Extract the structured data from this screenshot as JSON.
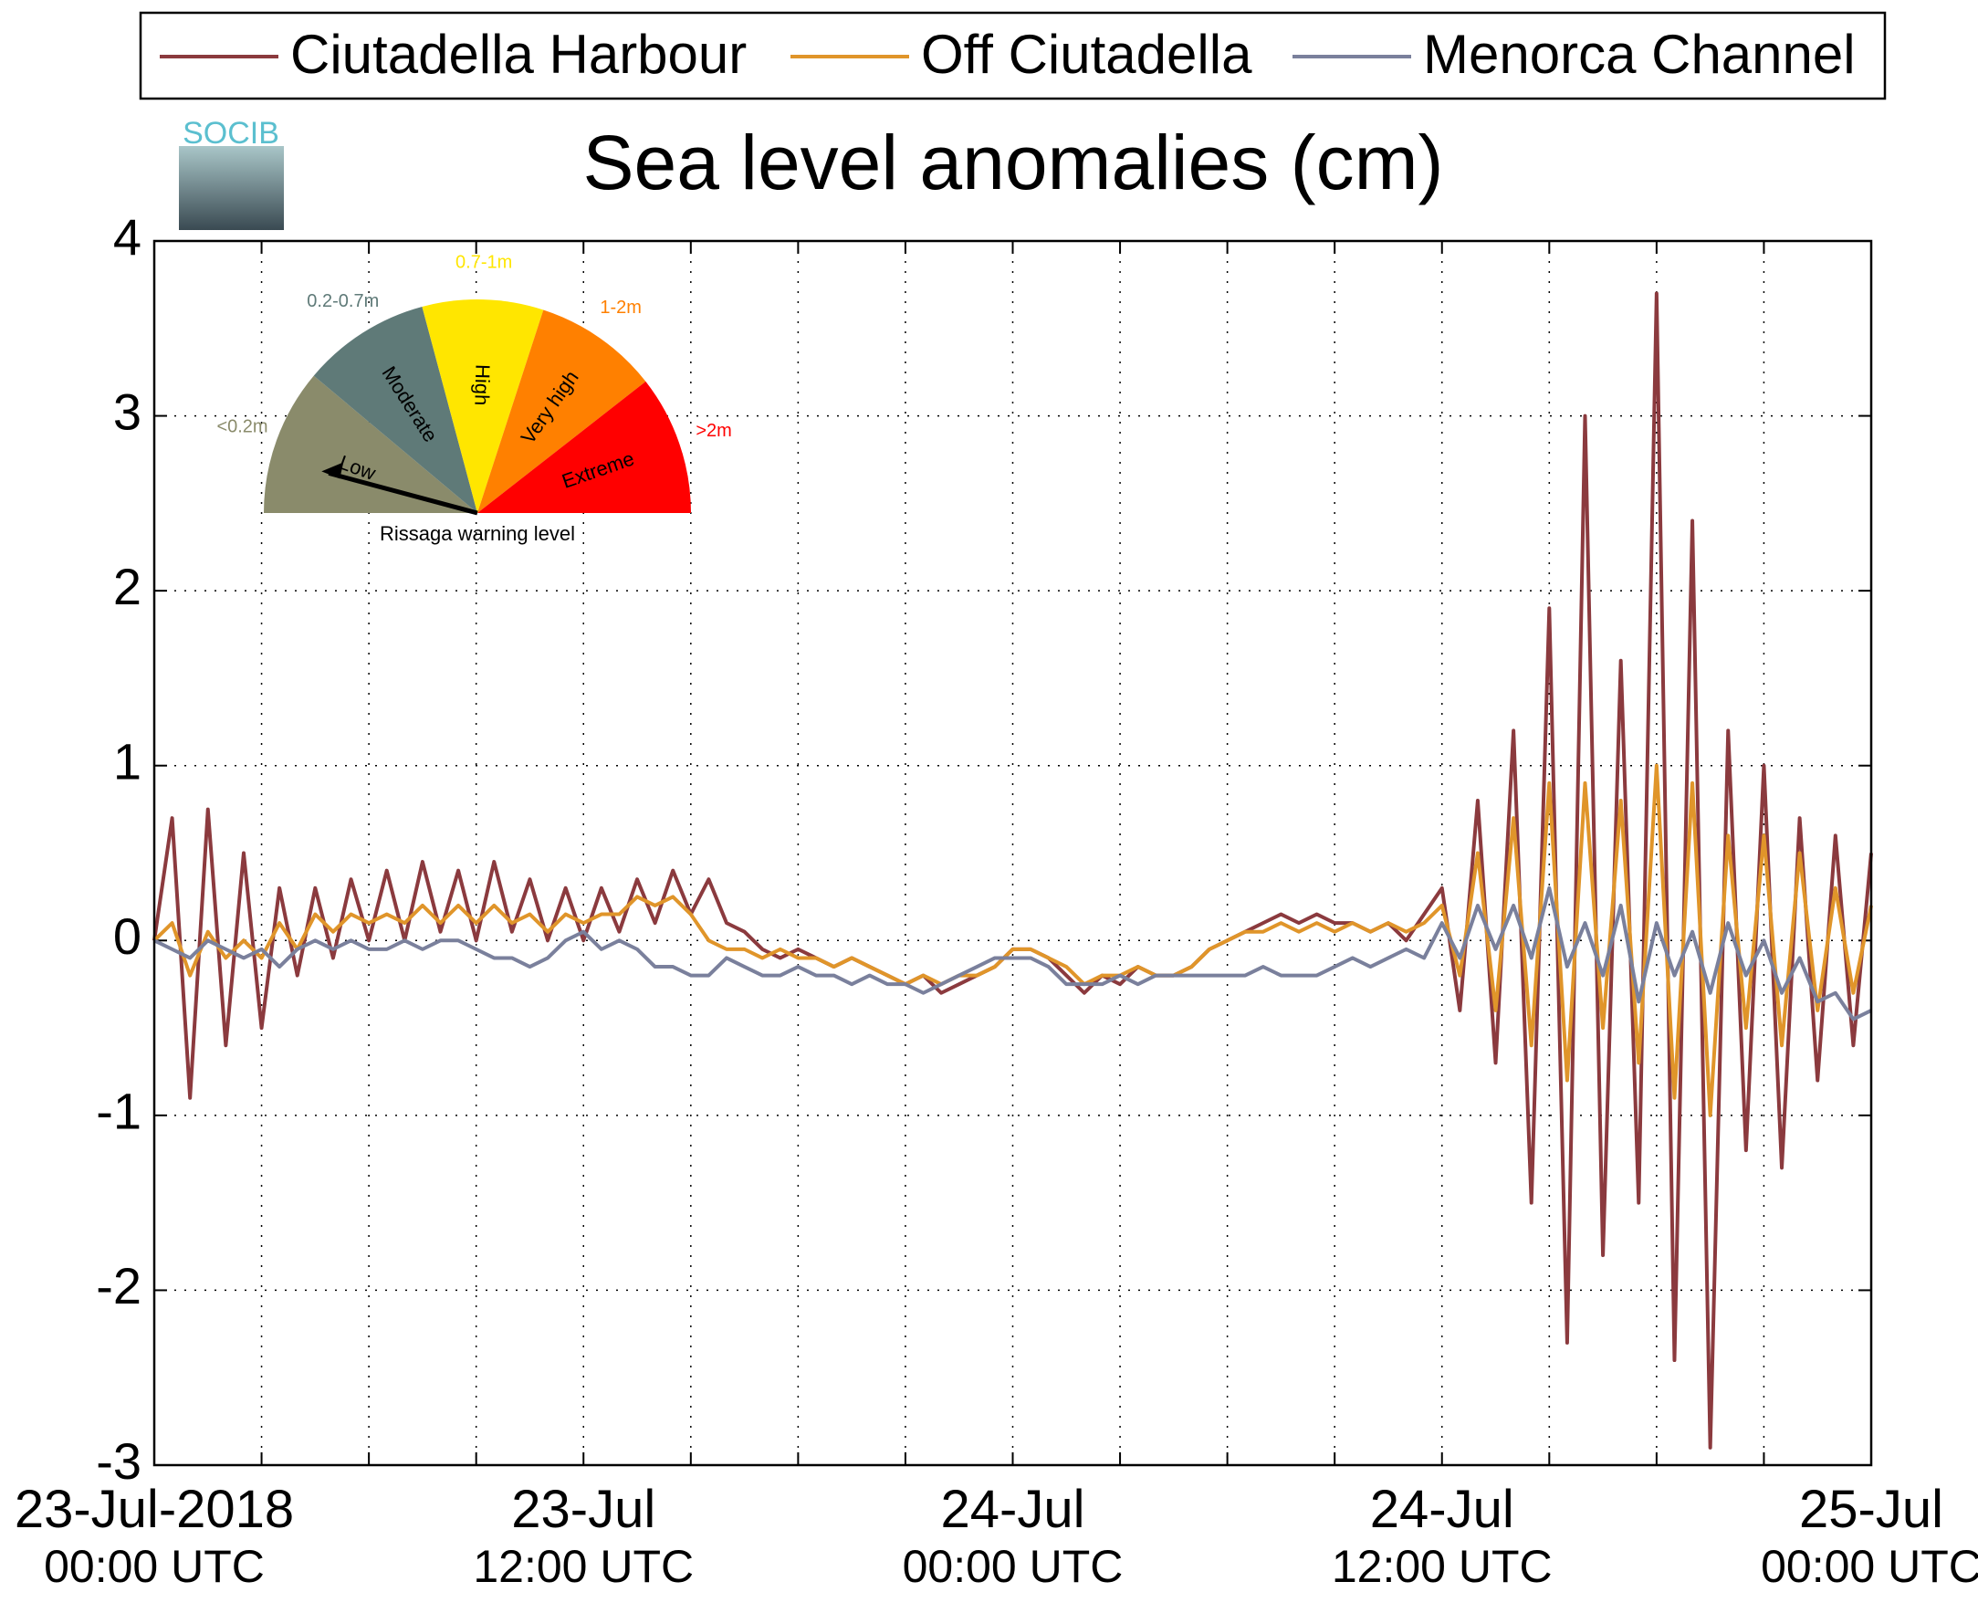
{
  "chart_data": {
    "type": "line",
    "title": "Sea level anomalies (cm)",
    "x": [
      0,
      0.5,
      1,
      1.5,
      2,
      2.5,
      3,
      3.5,
      4,
      4.5,
      5,
      5.5,
      6,
      6.5,
      7,
      7.5,
      8,
      8.5,
      9,
      9.5,
      10,
      10.5,
      11,
      11.5,
      12,
      12.5,
      13,
      13.5,
      14,
      14.5,
      15,
      15.5,
      16,
      16.5,
      17,
      17.5,
      18,
      18.5,
      19,
      19.5,
      20,
      20.5,
      21,
      21.5,
      22,
      22.5,
      23,
      23.5,
      24,
      24.5,
      25,
      25.5,
      26,
      26.5,
      27,
      27.5,
      28,
      28.5,
      29,
      29.5,
      30,
      30.5,
      31,
      31.5,
      32,
      32.5,
      33,
      33.5,
      34,
      34.5,
      35,
      35.5,
      36,
      36.5,
      37,
      37.5,
      38,
      38.5,
      39,
      39.5,
      40,
      40.5,
      41,
      41.5,
      42,
      42.5,
      43,
      43.5,
      44,
      44.5,
      45,
      45.5,
      46,
      46.5,
      47,
      47.5,
      48
    ],
    "series": [
      {
        "name": "Ciutadella Harbour",
        "color": "#8b3a3e",
        "values": [
          0,
          0.7,
          -0.9,
          0.75,
          -0.6,
          0.5,
          -0.5,
          0.3,
          -0.2,
          0.3,
          -0.1,
          0.35,
          0.0,
          0.4,
          0.0,
          0.45,
          0.05,
          0.4,
          0.0,
          0.45,
          0.05,
          0.35,
          0.0,
          0.3,
          0.0,
          0.3,
          0.05,
          0.35,
          0.1,
          0.4,
          0.15,
          0.35,
          0.1,
          0.05,
          -0.05,
          -0.1,
          -0.05,
          -0.1,
          -0.15,
          -0.1,
          -0.15,
          -0.2,
          -0.25,
          -0.2,
          -0.3,
          -0.25,
          -0.2,
          -0.15,
          -0.05,
          -0.05,
          -0.1,
          -0.2,
          -0.3,
          -0.2,
          -0.25,
          -0.15,
          -0.2,
          -0.2,
          -0.15,
          -0.05,
          0.0,
          0.05,
          0.1,
          0.15,
          0.1,
          0.15,
          0.1,
          0.1,
          0.05,
          0.1,
          0.0,
          0.15,
          0.3,
          -0.4,
          0.8,
          -0.7,
          1.2,
          -1.5,
          1.9,
          -2.3,
          3.0,
          -1.8,
          1.6,
          -1.5,
          3.7,
          -2.4,
          2.4,
          -2.9,
          1.2,
          -1.2,
          1.0,
          -1.3,
          0.7,
          -0.8,
          0.6,
          -0.6,
          0.5
        ]
      },
      {
        "name": "Off Ciutadella",
        "color": "#e0952a",
        "values": [
          0,
          0.1,
          -0.2,
          0.05,
          -0.1,
          0.0,
          -0.1,
          0.1,
          -0.05,
          0.15,
          0.05,
          0.15,
          0.1,
          0.15,
          0.1,
          0.2,
          0.1,
          0.2,
          0.1,
          0.2,
          0.1,
          0.15,
          0.05,
          0.15,
          0.1,
          0.15,
          0.15,
          0.25,
          0.2,
          0.25,
          0.15,
          0.0,
          -0.05,
          -0.05,
          -0.1,
          -0.05,
          -0.1,
          -0.1,
          -0.15,
          -0.1,
          -0.15,
          -0.2,
          -0.25,
          -0.2,
          -0.25,
          -0.2,
          -0.2,
          -0.15,
          -0.05,
          -0.05,
          -0.1,
          -0.15,
          -0.25,
          -0.2,
          -0.2,
          -0.15,
          -0.2,
          -0.2,
          -0.15,
          -0.05,
          0.0,
          0.05,
          0.05,
          0.1,
          0.05,
          0.1,
          0.05,
          0.1,
          0.05,
          0.1,
          0.05,
          0.1,
          0.2,
          -0.2,
          0.5,
          -0.4,
          0.7,
          -0.6,
          0.9,
          -0.8,
          0.9,
          -0.5,
          0.8,
          -0.7,
          1.0,
          -0.9,
          0.9,
          -1.0,
          0.6,
          -0.5,
          0.6,
          -0.6,
          0.5,
          -0.4,
          0.3,
          -0.3,
          0.2
        ]
      },
      {
        "name": "Menorca Channel",
        "color": "#7a809c",
        "values": [
          0,
          -0.05,
          -0.1,
          0.0,
          -0.05,
          -0.1,
          -0.05,
          -0.15,
          -0.05,
          0.0,
          -0.05,
          0.0,
          -0.05,
          -0.05,
          0.0,
          -0.05,
          0.0,
          0.0,
          -0.05,
          -0.1,
          -0.1,
          -0.15,
          -0.1,
          0.0,
          0.05,
          -0.05,
          0.0,
          -0.05,
          -0.15,
          -0.15,
          -0.2,
          -0.2,
          -0.1,
          -0.15,
          -0.2,
          -0.2,
          -0.15,
          -0.2,
          -0.2,
          -0.25,
          -0.2,
          -0.25,
          -0.25,
          -0.3,
          -0.25,
          -0.2,
          -0.15,
          -0.1,
          -0.1,
          -0.1,
          -0.15,
          -0.25,
          -0.25,
          -0.25,
          -0.2,
          -0.25,
          -0.2,
          -0.2,
          -0.2,
          -0.2,
          -0.2,
          -0.2,
          -0.15,
          -0.2,
          -0.2,
          -0.2,
          -0.15,
          -0.1,
          -0.15,
          -0.1,
          -0.05,
          -0.1,
          0.1,
          -0.1,
          0.2,
          -0.05,
          0.2,
          -0.1,
          0.3,
          -0.15,
          0.1,
          -0.2,
          0.2,
          -0.35,
          0.1,
          -0.2,
          0.05,
          -0.3,
          0.1,
          -0.2,
          0.0,
          -0.3,
          -0.1,
          -0.35,
          -0.3,
          -0.45,
          -0.4
        ]
      }
    ],
    "xlim": [
      0,
      48
    ],
    "xticks": [
      {
        "value": 0,
        "label": "23-Jul-2018\n00:00 UTC"
      },
      {
        "value": 12,
        "label": "23-Jul\n12:00 UTC"
      },
      {
        "value": 24,
        "label": "24-Jul\n00:00 UTC"
      },
      {
        "value": 36,
        "label": "24-Jul\n12:00 UTC"
      },
      {
        "value": 48,
        "label": "25-Jul\n00:00 UTC"
      }
    ],
    "xminorticks": [
      3,
      6,
      9,
      15,
      18,
      21,
      27,
      30,
      33,
      39,
      42,
      45
    ],
    "ylim": [
      -3,
      4
    ],
    "yticks": [
      -3,
      -2,
      -1,
      0,
      1,
      2,
      3,
      4
    ],
    "grid": true,
    "legend": "top"
  },
  "logo": "SOCIB",
  "inset": {
    "title": "Rissaga warning level",
    "levels": [
      {
        "name": "Low",
        "range": "<0.2m",
        "color": "#8a8b6b"
      },
      {
        "name": "Moderate",
        "range": "0.2-0.7m",
        "color": "#5f7a78"
      },
      {
        "name": "High",
        "range": "0.7-1m",
        "color": "#ffe600"
      },
      {
        "name": "Very high",
        "range": "1-2m",
        "color": "#ff8000"
      },
      {
        "name": "Extreme",
        "range": ">2m",
        "color": "#ff0000"
      }
    ]
  }
}
